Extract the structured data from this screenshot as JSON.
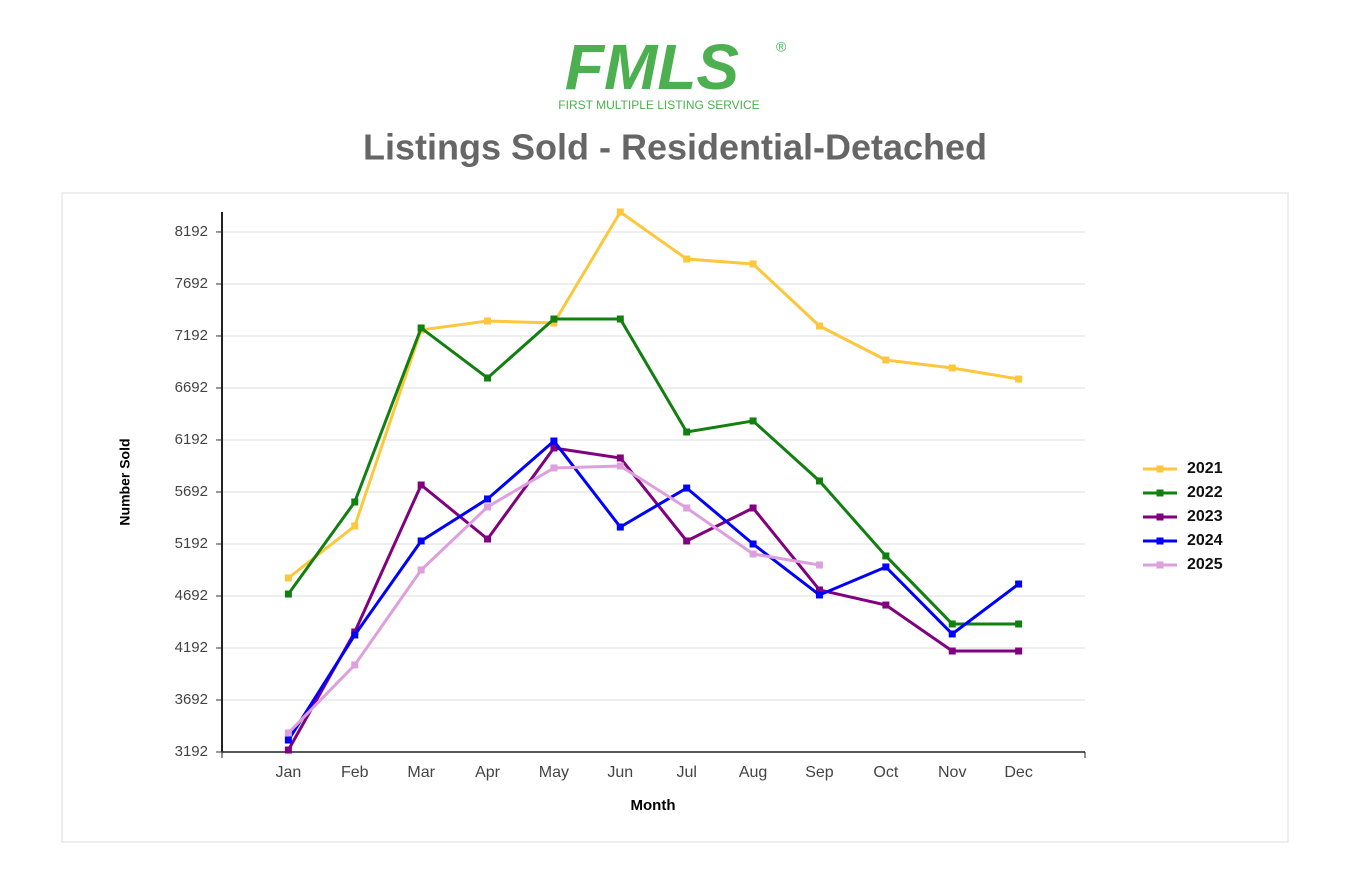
{
  "logo": {
    "text": "FMLS",
    "mark": "®",
    "tagline": "FIRST MULTIPLE LISTING SERVICE"
  },
  "chart_data": {
    "type": "line",
    "title": "Listings Sold - Residential-Detached",
    "x_label": "Month",
    "y_label": "Number Sold",
    "categories": [
      "Jan",
      "Feb",
      "Mar",
      "Apr",
      "May",
      "Jun",
      "Jul",
      "Aug",
      "Sep",
      "Oct",
      "Nov",
      "Dec"
    ],
    "ylim": [
      3192,
      8384
    ],
    "yticks": [
      3192,
      3692,
      4192,
      4692,
      5192,
      5692,
      6192,
      6692,
      7192,
      7692,
      8192
    ],
    "grid": true,
    "legend": "right",
    "series": [
      {
        "name": "2021",
        "color": "#fcc73c",
        "values": [
          4865,
          5365,
          7250,
          7336,
          7317,
          8384,
          7932,
          7884,
          7288,
          6961,
          6884,
          6778
        ]
      },
      {
        "name": "2022",
        "color": "#118011",
        "values": [
          4711,
          5596,
          7269,
          6788,
          7355,
          7355,
          6269,
          6375,
          5798,
          5077,
          4423,
          4423
        ]
      },
      {
        "name": "2023",
        "color": "#800080",
        "values": [
          3211,
          4346,
          5759,
          5240,
          6115,
          6019,
          5221,
          5538,
          4750,
          4605,
          4163,
          4163
        ]
      },
      {
        "name": "2024",
        "color": "#0000ff",
        "values": [
          3307,
          4317,
          5221,
          5625,
          6182,
          5355,
          5730,
          5192,
          4702,
          4971,
          4327,
          4807
        ]
      },
      {
        "name": "2025",
        "color": "#dda0dd",
        "values": [
          3375,
          4029,
          4942,
          5548,
          5923,
          5942,
          5538,
          5096,
          4990,
          null,
          null,
          null
        ]
      }
    ]
  }
}
